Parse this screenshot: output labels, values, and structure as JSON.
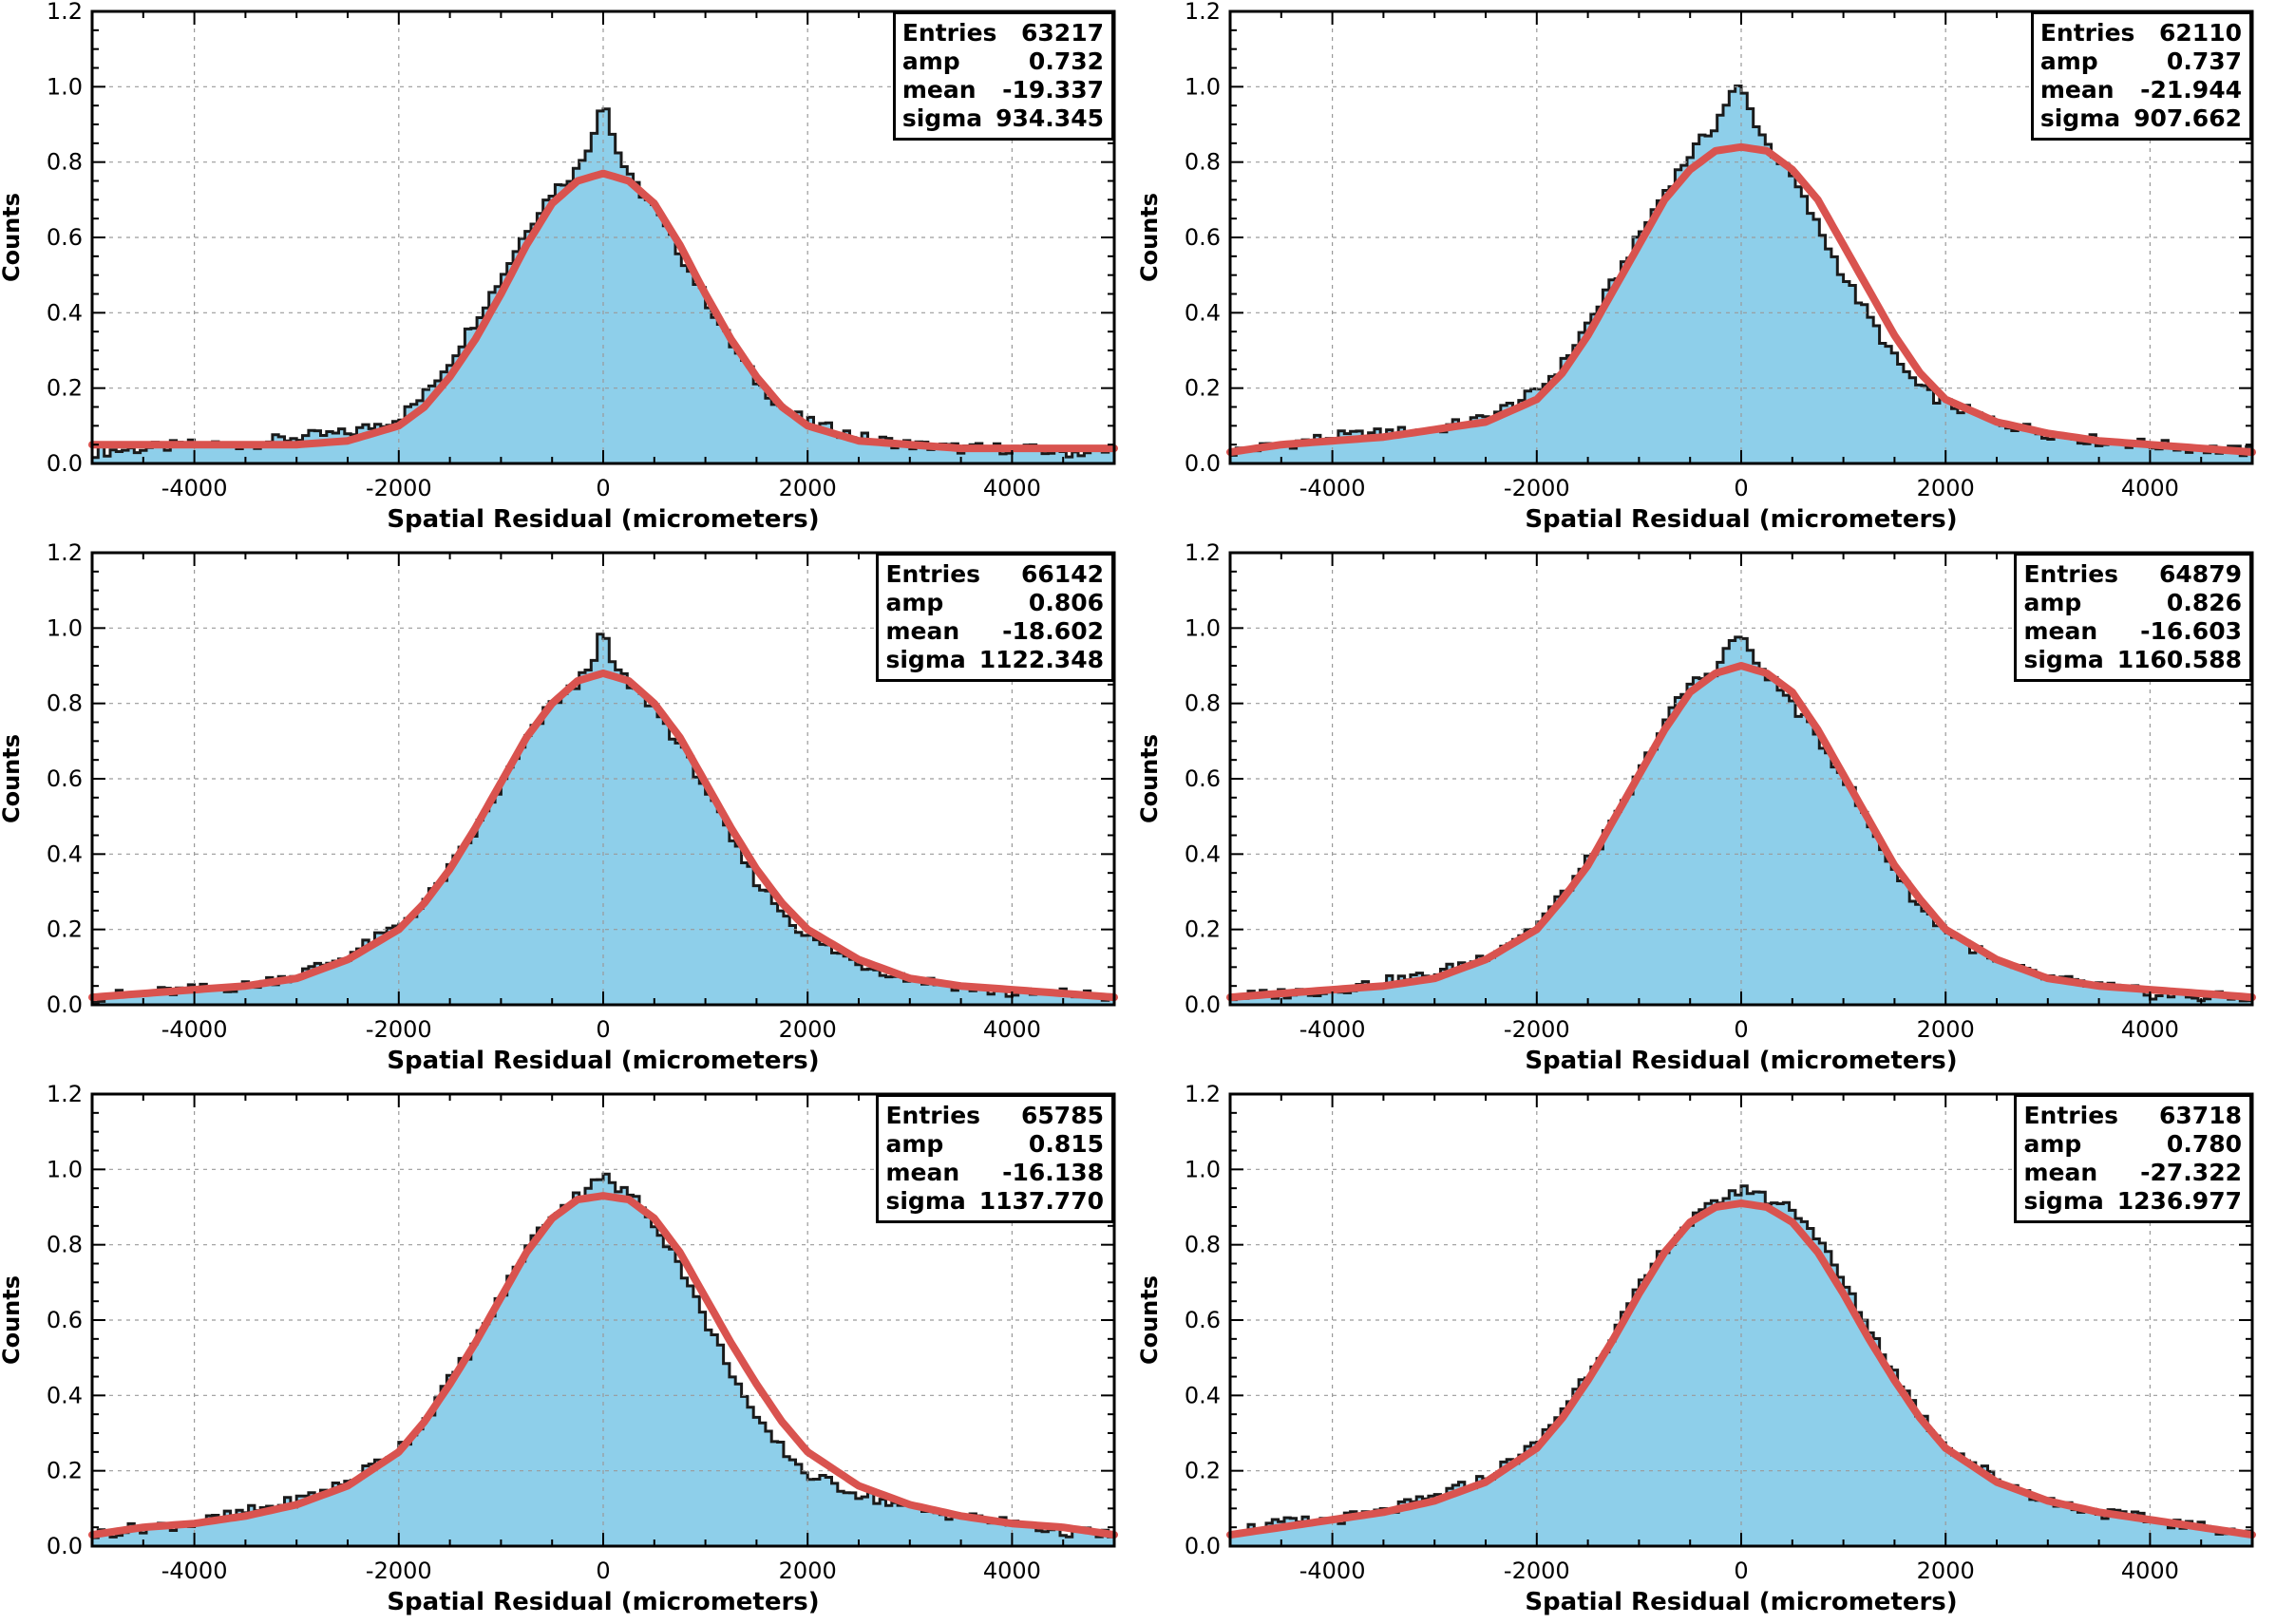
{
  "colors": {
    "fill": "#8ecfea",
    "hist_line": "#1a1a1a",
    "fit": "#d9534f",
    "grid": "#9a9a9a"
  },
  "stat_labels": {
    "entries": "Entries",
    "amp": "amp",
    "mean": "mean",
    "sigma": "sigma"
  },
  "chart_data": [
    {
      "type": "area",
      "xlabel": "Spatial Residual (micrometers)",
      "ylabel": "Counts",
      "xlim": [
        -5000,
        5000
      ],
      "ylim": [
        0,
        1.2
      ],
      "grid": true,
      "stats_box": "top-right",
      "xticks": [
        "-4000",
        "-2000",
        "0",
        "2000",
        "4000"
      ],
      "yticks": [
        "0.0",
        "0.2",
        "0.4",
        "0.6",
        "0.8",
        "1.0",
        "1.2"
      ],
      "stats": {
        "entries": "63217",
        "amp": "0.732",
        "mean": "-19.337",
        "sigma": "934.345"
      },
      "series": [
        {
          "x": [
            -5000,
            -4500,
            -4000,
            -3500,
            -3000,
            -2500,
            -2000,
            -1750,
            -1500,
            -1250,
            -1000,
            -750,
            -500,
            -250,
            -100,
            0,
            100,
            250,
            500,
            750,
            1000,
            1250,
            1500,
            1750,
            2000,
            2500,
            3000,
            3500,
            4000,
            4500,
            5000
          ],
          "values": [
            0.03,
            0.04,
            0.05,
            0.05,
            0.07,
            0.08,
            0.12,
            0.18,
            0.27,
            0.38,
            0.49,
            0.62,
            0.72,
            0.78,
            0.87,
            0.98,
            0.86,
            0.76,
            0.68,
            0.56,
            0.44,
            0.32,
            0.22,
            0.15,
            0.11,
            0.07,
            0.05,
            0.04,
            0.04,
            0.03,
            0.03
          ]
        },
        {
          "x": [
            -5000,
            -4500,
            -4000,
            -3500,
            -3000,
            -2500,
            -2000,
            -1750,
            -1500,
            -1250,
            -1000,
            -750,
            -500,
            -250,
            0,
            250,
            500,
            750,
            1000,
            1250,
            1500,
            1750,
            2000,
            2500,
            3000,
            3500,
            4000,
            4500,
            5000
          ],
          "values": [
            0.05,
            0.05,
            0.05,
            0.05,
            0.05,
            0.06,
            0.1,
            0.15,
            0.23,
            0.33,
            0.45,
            0.58,
            0.69,
            0.75,
            0.77,
            0.75,
            0.69,
            0.58,
            0.45,
            0.33,
            0.23,
            0.15,
            0.1,
            0.06,
            0.05,
            0.04,
            0.04,
            0.04,
            0.04
          ]
        }
      ]
    },
    {
      "type": "area",
      "xlabel": "Spatial Residual (micrometers)",
      "ylabel": "Counts",
      "xlim": [
        -5000,
        5000
      ],
      "ylim": [
        0,
        1.2
      ],
      "grid": true,
      "stats_box": "top-right",
      "xticks": [
        "-4000",
        "-2000",
        "0",
        "2000",
        "4000"
      ],
      "yticks": [
        "0.0",
        "0.2",
        "0.4",
        "0.6",
        "0.8",
        "1.0",
        "1.2"
      ],
      "stats": {
        "entries": "62110",
        "amp": "0.737",
        "mean": "-21.944",
        "sigma": "907.662"
      },
      "series": [
        {
          "x": [
            -5000,
            -4500,
            -4000,
            -3500,
            -3000,
            -2500,
            -2000,
            -1750,
            -1500,
            -1250,
            -1000,
            -750,
            -500,
            -250,
            -100,
            0,
            100,
            250,
            500,
            750,
            1000,
            1250,
            1500,
            1750,
            2000,
            2500,
            3000,
            3500,
            4000,
            4500,
            5000
          ],
          "values": [
            0.03,
            0.05,
            0.07,
            0.08,
            0.09,
            0.12,
            0.19,
            0.26,
            0.37,
            0.48,
            0.6,
            0.72,
            0.82,
            0.9,
            0.98,
            1.0,
            0.93,
            0.85,
            0.76,
            0.63,
            0.5,
            0.39,
            0.28,
            0.2,
            0.16,
            0.11,
            0.08,
            0.06,
            0.05,
            0.04,
            0.03
          ]
        },
        {
          "x": [
            -5000,
            -4500,
            -4000,
            -3500,
            -3000,
            -2500,
            -2000,
            -1750,
            -1500,
            -1250,
            -1000,
            -750,
            -500,
            -250,
            0,
            250,
            500,
            750,
            1000,
            1250,
            1500,
            1750,
            2000,
            2500,
            3000,
            3500,
            4000,
            4500,
            5000
          ],
          "values": [
            0.03,
            0.05,
            0.06,
            0.07,
            0.09,
            0.11,
            0.17,
            0.24,
            0.34,
            0.46,
            0.58,
            0.7,
            0.78,
            0.83,
            0.84,
            0.83,
            0.78,
            0.7,
            0.58,
            0.46,
            0.34,
            0.24,
            0.17,
            0.11,
            0.08,
            0.06,
            0.05,
            0.04,
            0.03
          ]
        }
      ]
    },
    {
      "type": "area",
      "xlabel": "Spatial Residual (micrometers)",
      "ylabel": "Counts",
      "xlim": [
        -5000,
        5000
      ],
      "ylim": [
        0,
        1.2
      ],
      "grid": true,
      "stats_box": "top-right",
      "xticks": [
        "-4000",
        "-2000",
        "0",
        "2000",
        "4000"
      ],
      "yticks": [
        "0.0",
        "0.2",
        "0.4",
        "0.6",
        "0.8",
        "1.0",
        "1.2"
      ],
      "stats": {
        "entries": "66142",
        "amp": "0.806",
        "mean": "-18.602",
        "sigma": "1122.348"
      },
      "series": [
        {
          "x": [
            -5000,
            -4500,
            -4000,
            -3500,
            -3000,
            -2500,
            -2000,
            -1750,
            -1500,
            -1250,
            -1000,
            -750,
            -500,
            -250,
            -100,
            0,
            100,
            250,
            500,
            750,
            1000,
            1250,
            1500,
            1750,
            2000,
            2500,
            3000,
            3500,
            4000,
            4500,
            5000
          ],
          "values": [
            0.02,
            0.03,
            0.04,
            0.05,
            0.08,
            0.13,
            0.21,
            0.27,
            0.36,
            0.46,
            0.58,
            0.7,
            0.8,
            0.85,
            0.92,
            0.99,
            0.9,
            0.85,
            0.79,
            0.69,
            0.58,
            0.44,
            0.33,
            0.25,
            0.18,
            0.11,
            0.07,
            0.05,
            0.03,
            0.03,
            0.02
          ]
        },
        {
          "x": [
            -5000,
            -4500,
            -4000,
            -3500,
            -3000,
            -2500,
            -2000,
            -1750,
            -1500,
            -1250,
            -1000,
            -750,
            -500,
            -250,
            0,
            250,
            500,
            750,
            1000,
            1250,
            1500,
            1750,
            2000,
            2500,
            3000,
            3500,
            4000,
            4500,
            5000
          ],
          "values": [
            0.02,
            0.03,
            0.04,
            0.05,
            0.07,
            0.12,
            0.2,
            0.27,
            0.36,
            0.47,
            0.59,
            0.71,
            0.8,
            0.86,
            0.88,
            0.86,
            0.8,
            0.71,
            0.59,
            0.47,
            0.36,
            0.27,
            0.2,
            0.12,
            0.07,
            0.05,
            0.04,
            0.03,
            0.02
          ]
        }
      ]
    },
    {
      "type": "area",
      "xlabel": "Spatial Residual (micrometers)",
      "ylabel": "Counts",
      "xlim": [
        -5000,
        5000
      ],
      "ylim": [
        0,
        1.2
      ],
      "grid": true,
      "stats_box": "top-right",
      "xticks": [
        "-4000",
        "-2000",
        "0",
        "2000",
        "4000"
      ],
      "yticks": [
        "0.0",
        "0.2",
        "0.4",
        "0.6",
        "0.8",
        "1.0",
        "1.2"
      ],
      "stats": {
        "entries": "64879",
        "amp": "0.826",
        "mean": "-16.603",
        "sigma": "1160.588"
      },
      "series": [
        {
          "x": [
            -5000,
            -4500,
            -4000,
            -3500,
            -3000,
            -2500,
            -2000,
            -1750,
            -1500,
            -1250,
            -1000,
            -750,
            -500,
            -250,
            -100,
            0,
            100,
            250,
            500,
            750,
            1000,
            1250,
            1500,
            1750,
            2000,
            2500,
            3000,
            3500,
            4000,
            4500,
            5000
          ],
          "values": [
            0.02,
            0.03,
            0.04,
            0.06,
            0.08,
            0.13,
            0.21,
            0.29,
            0.38,
            0.48,
            0.61,
            0.75,
            0.85,
            0.89,
            0.96,
            0.99,
            0.92,
            0.88,
            0.8,
            0.71,
            0.61,
            0.48,
            0.36,
            0.26,
            0.2,
            0.11,
            0.07,
            0.05,
            0.03,
            0.02,
            0.02
          ]
        },
        {
          "x": [
            -5000,
            -4500,
            -4000,
            -3500,
            -3000,
            -2500,
            -2000,
            -1750,
            -1500,
            -1250,
            -1000,
            -750,
            -500,
            -250,
            0,
            250,
            500,
            750,
            1000,
            1250,
            1500,
            1750,
            2000,
            2500,
            3000,
            3500,
            4000,
            4500,
            5000
          ],
          "values": [
            0.02,
            0.03,
            0.04,
            0.05,
            0.07,
            0.12,
            0.2,
            0.28,
            0.37,
            0.49,
            0.61,
            0.73,
            0.83,
            0.88,
            0.9,
            0.88,
            0.83,
            0.73,
            0.61,
            0.49,
            0.37,
            0.28,
            0.2,
            0.12,
            0.07,
            0.05,
            0.04,
            0.03,
            0.02
          ]
        }
      ]
    },
    {
      "type": "area",
      "xlabel": "Spatial Residual (micrometers)",
      "ylabel": "Counts",
      "xlim": [
        -5000,
        5000
      ],
      "ylim": [
        0,
        1.2
      ],
      "grid": true,
      "stats_box": "top-right",
      "xticks": [
        "-4000",
        "-2000",
        "0",
        "2000",
        "4000"
      ],
      "yticks": [
        "0.0",
        "0.2",
        "0.4",
        "0.6",
        "0.8",
        "1.0",
        "1.2"
      ],
      "stats": {
        "entries": "65785",
        "amp": "0.815",
        "mean": "-16.138",
        "sigma": "1137.770"
      },
      "series": [
        {
          "x": [
            -5000,
            -4500,
            -4000,
            -3500,
            -3000,
            -2500,
            -2000,
            -1750,
            -1500,
            -1250,
            -1000,
            -750,
            -500,
            -250,
            -100,
            0,
            100,
            250,
            500,
            750,
            1000,
            1250,
            1500,
            1750,
            2000,
            2500,
            3000,
            3500,
            4000,
            4500,
            5000
          ],
          "values": [
            0.03,
            0.05,
            0.06,
            0.09,
            0.12,
            0.17,
            0.26,
            0.33,
            0.44,
            0.54,
            0.66,
            0.79,
            0.88,
            0.93,
            0.97,
            0.99,
            0.95,
            0.94,
            0.86,
            0.75,
            0.6,
            0.47,
            0.33,
            0.26,
            0.19,
            0.14,
            0.1,
            0.08,
            0.06,
            0.04,
            0.03
          ]
        },
        {
          "x": [
            -5000,
            -4500,
            -4000,
            -3500,
            -3000,
            -2500,
            -2000,
            -1750,
            -1500,
            -1250,
            -1000,
            -750,
            -500,
            -250,
            0,
            250,
            500,
            750,
            1000,
            1250,
            1500,
            1750,
            2000,
            2500,
            3000,
            3500,
            4000,
            4500,
            5000
          ],
          "values": [
            0.03,
            0.05,
            0.06,
            0.08,
            0.11,
            0.16,
            0.25,
            0.33,
            0.43,
            0.54,
            0.66,
            0.78,
            0.87,
            0.92,
            0.93,
            0.92,
            0.87,
            0.78,
            0.66,
            0.54,
            0.43,
            0.33,
            0.25,
            0.16,
            0.11,
            0.08,
            0.06,
            0.05,
            0.03
          ]
        }
      ]
    },
    {
      "type": "area",
      "xlabel": "Spatial Residual (micrometers)",
      "ylabel": "Counts",
      "xlim": [
        -5000,
        5000
      ],
      "ylim": [
        0,
        1.2
      ],
      "grid": true,
      "stats_box": "top-right",
      "xticks": [
        "-4000",
        "-2000",
        "0",
        "2000",
        "4000"
      ],
      "yticks": [
        "0.0",
        "0.2",
        "0.4",
        "0.6",
        "0.8",
        "1.0",
        "1.2"
      ],
      "stats": {
        "entries": "63718",
        "amp": "0.780",
        "mean": "-27.322",
        "sigma": "1236.977"
      },
      "series": [
        {
          "x": [
            -5000,
            -4500,
            -4000,
            -3500,
            -3000,
            -2500,
            -2000,
            -1750,
            -1500,
            -1250,
            -1000,
            -750,
            -500,
            -250,
            -100,
            0,
            100,
            250,
            500,
            750,
            1000,
            1250,
            1500,
            1750,
            2000,
            2500,
            3000,
            3500,
            4000,
            4500,
            5000
          ],
          "values": [
            0.04,
            0.06,
            0.07,
            0.09,
            0.13,
            0.18,
            0.27,
            0.36,
            0.46,
            0.56,
            0.68,
            0.79,
            0.86,
            0.91,
            0.94,
            0.94,
            0.95,
            0.92,
            0.9,
            0.82,
            0.7,
            0.58,
            0.46,
            0.35,
            0.27,
            0.18,
            0.12,
            0.09,
            0.07,
            0.05,
            0.04
          ]
        },
        {
          "x": [
            -5000,
            -4500,
            -4000,
            -3500,
            -3000,
            -2500,
            -2000,
            -1750,
            -1500,
            -1250,
            -1000,
            -750,
            -500,
            -250,
            0,
            250,
            500,
            750,
            1000,
            1250,
            1500,
            1750,
            2000,
            2500,
            3000,
            3500,
            4000,
            4500,
            5000
          ],
          "values": [
            0.03,
            0.05,
            0.07,
            0.09,
            0.12,
            0.17,
            0.26,
            0.34,
            0.44,
            0.55,
            0.67,
            0.78,
            0.86,
            0.9,
            0.91,
            0.9,
            0.86,
            0.78,
            0.67,
            0.55,
            0.44,
            0.34,
            0.26,
            0.17,
            0.12,
            0.09,
            0.07,
            0.05,
            0.03
          ]
        }
      ]
    }
  ]
}
